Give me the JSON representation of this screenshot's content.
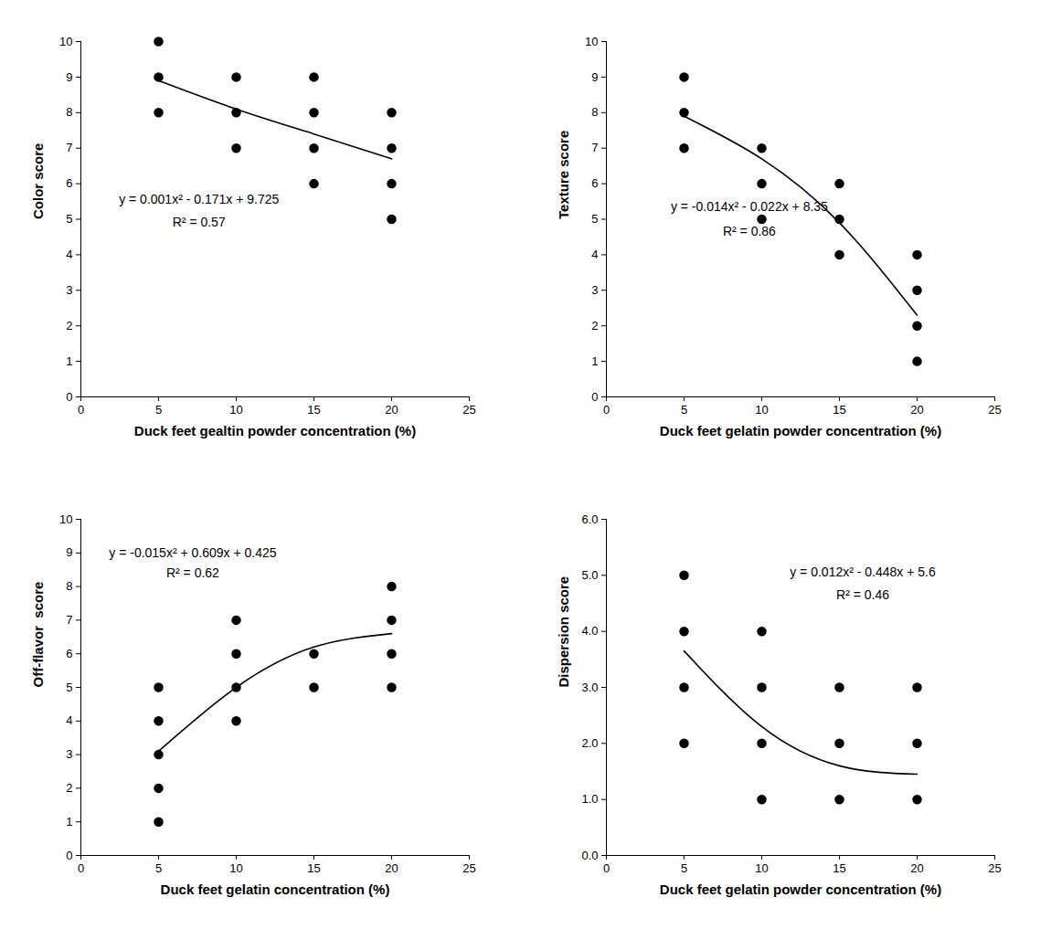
{
  "chart_data": [
    {
      "type": "scatter",
      "x_label": "Duck feet gealtin powder concentration (%)",
      "y_label": "Color score",
      "xlim": [
        0,
        25
      ],
      "xticks": [
        0,
        5,
        10,
        15,
        20,
        25
      ],
      "ylim": [
        0,
        10
      ],
      "yticks": [
        0,
        1,
        2,
        3,
        4,
        5,
        6,
        7,
        8,
        9,
        10
      ],
      "annotations": [
        "y = 0.001x² - 0.171x + 9.725",
        "R² = 0.57"
      ],
      "series": [
        {
          "type": "scatter",
          "color": "#000000",
          "marker": "circle",
          "x": [
            5,
            5,
            5,
            10,
            10,
            10,
            15,
            15,
            15,
            15,
            20,
            20,
            20,
            20
          ],
          "values": [
            10,
            9,
            8,
            9,
            8,
            7,
            9,
            8,
            7,
            6,
            8,
            7,
            6,
            5
          ]
        },
        {
          "type": "line",
          "color": "#000000",
          "line_style": "solid",
          "x": [
            5,
            10,
            15,
            20
          ],
          "values": [
            8.9,
            8.1,
            7.4,
            6.7
          ]
        }
      ]
    },
    {
      "type": "scatter",
      "x_label": "Duck feet gelatin powder concentration (%)",
      "y_label": "Texture score",
      "xlim": [
        0,
        25
      ],
      "xticks": [
        0,
        5,
        10,
        15,
        20,
        25
      ],
      "ylim": [
        0,
        10
      ],
      "yticks": [
        0,
        1,
        2,
        3,
        4,
        5,
        6,
        7,
        8,
        9,
        10
      ],
      "annotations": [
        "y = -0.014x² - 0.022x + 8.35",
        "R² = 0.86"
      ],
      "series": [
        {
          "type": "scatter",
          "color": "#000000",
          "marker": "circle",
          "x": [
            5,
            5,
            5,
            10,
            10,
            10,
            15,
            15,
            15,
            20,
            20,
            20,
            20
          ],
          "values": [
            9,
            8,
            7,
            7,
            6,
            5,
            6,
            5,
            4,
            4,
            3,
            2,
            1
          ]
        },
        {
          "type": "line",
          "color": "#000000",
          "line_style": "solid",
          "x": [
            5,
            10,
            15,
            20
          ],
          "values": [
            7.9,
            6.7,
            4.9,
            2.3
          ]
        }
      ]
    },
    {
      "type": "scatter",
      "x_label": "Duck feet gelatin concentration (%)",
      "y_label": "Off-flavor  score",
      "xlim": [
        0,
        25
      ],
      "xticks": [
        0,
        5,
        10,
        15,
        20,
        25
      ],
      "ylim": [
        0,
        10
      ],
      "yticks": [
        0,
        1,
        2,
        3,
        4,
        5,
        6,
        7,
        8,
        9,
        10
      ],
      "annotations": [
        "y = -0.015x² + 0.609x + 0.425",
        "R² = 0.62"
      ],
      "series": [
        {
          "type": "scatter",
          "color": "#000000",
          "marker": "circle",
          "x": [
            5,
            5,
            5,
            5,
            5,
            10,
            10,
            10,
            10,
            15,
            15,
            20,
            20,
            20,
            20
          ],
          "values": [
            5,
            4,
            3,
            2,
            1,
            7,
            6,
            5,
            4,
            6,
            5,
            8,
            7,
            6,
            5
          ]
        },
        {
          "type": "line",
          "color": "#000000",
          "line_style": "solid",
          "x": [
            5,
            10,
            15,
            20
          ],
          "values": [
            3.1,
            5.0,
            6.2,
            6.6
          ]
        }
      ]
    },
    {
      "type": "scatter",
      "x_label": "Duck feet gelatin powder concentration (%)",
      "y_label": "Dispersion score",
      "xlim": [
        0,
        25
      ],
      "xticks": [
        0,
        5,
        10,
        15,
        20,
        25
      ],
      "ylim": [
        0,
        6
      ],
      "yticks": [
        0,
        1,
        2,
        3,
        4,
        5,
        6
      ],
      "annotations": [
        "y = 0.012x² - 0.448x + 5.6",
        "R² = 0.46"
      ],
      "series": [
        {
          "type": "scatter",
          "color": "#000000",
          "marker": "circle",
          "x": [
            5,
            5,
            5,
            5,
            10,
            10,
            10,
            10,
            15,
            15,
            15,
            20,
            20,
            20
          ],
          "values": [
            5,
            4,
            3,
            2,
            4,
            3,
            2,
            1,
            3,
            2,
            1,
            3,
            2,
            1
          ]
        },
        {
          "type": "line",
          "color": "#000000",
          "line_style": "solid",
          "x": [
            5,
            10,
            15,
            20
          ],
          "values": [
            3.65,
            2.3,
            1.6,
            1.45
          ]
        }
      ]
    }
  ]
}
